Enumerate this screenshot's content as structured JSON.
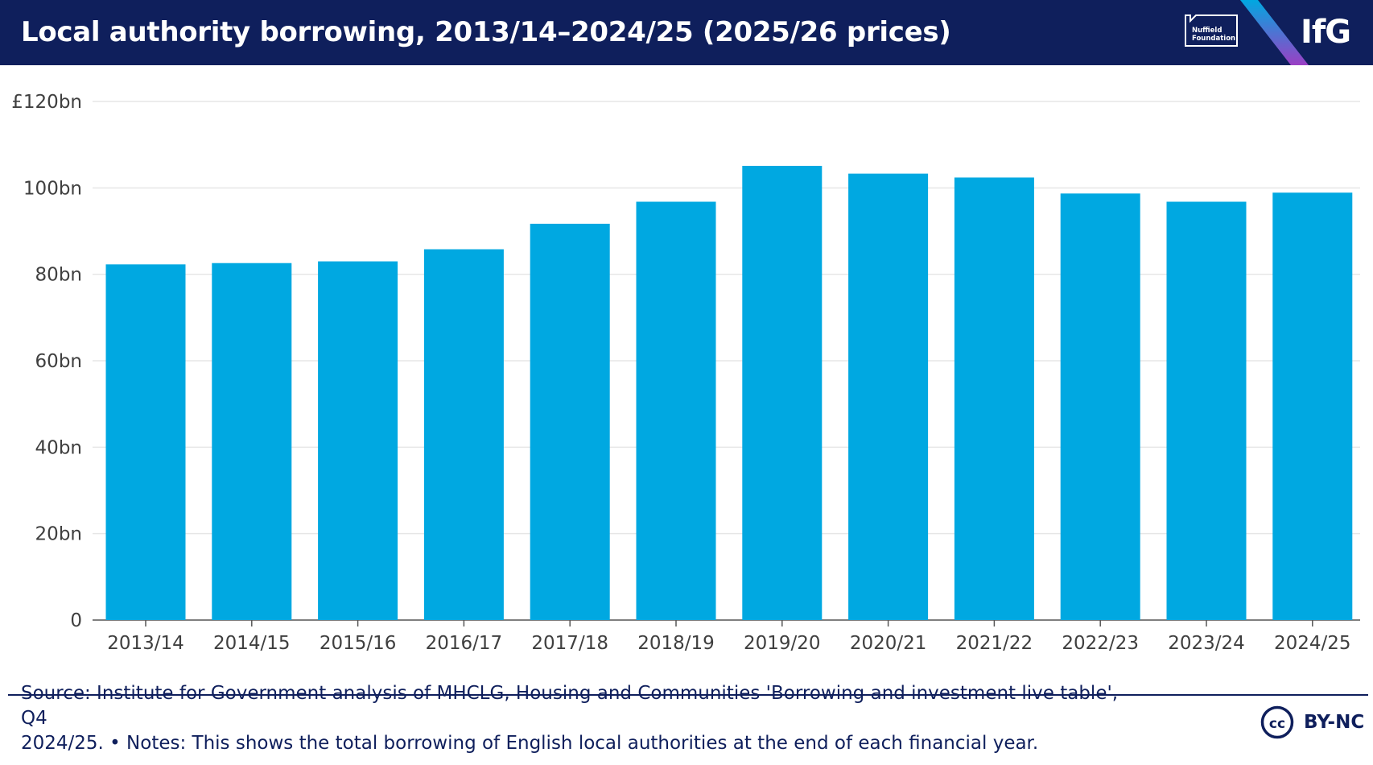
{
  "header": {
    "title": "Local authority borrowing, 2013/14–2024/25 (2025/26 prices)",
    "partner_logo_text": "Nuffield Foundation",
    "partner_logo_line1": "Nuffield",
    "partner_logo_line2": "Foundation",
    "brand": "IfG"
  },
  "colors": {
    "header_bg": "#0f1f5c",
    "bar": "#00a8e1",
    "grid": "#e6e6e6",
    "axis_text": "#3f3f3f",
    "footer_text": "#0f1f5c"
  },
  "chart_data": {
    "type": "bar",
    "title": "Local authority borrowing, 2013/14–2024/25 (2025/26 prices)",
    "xlabel": "",
    "ylabel": "",
    "ylim": [
      0,
      120
    ],
    "y_ticks": [
      0,
      20,
      40,
      60,
      80,
      100,
      120
    ],
    "y_tick_labels": [
      "0",
      "20bn",
      "40bn",
      "60bn",
      "80bn",
      "100bn",
      "£120bn"
    ],
    "grid": true,
    "legend": "none",
    "categories": [
      "2013/14",
      "2014/15",
      "2015/16",
      "2016/17",
      "2017/18",
      "2018/19",
      "2019/20",
      "2020/21",
      "2021/22",
      "2022/23",
      "2023/24",
      "2024/25"
    ],
    "series": [
      {
        "name": "Local authority borrowing (£bn, 2025/26 prices)",
        "values": [
          82.3,
          82.6,
          83.0,
          85.8,
          91.7,
          96.8,
          105.1,
          103.3,
          102.4,
          98.7,
          96.8,
          98.9
        ]
      }
    ]
  },
  "footer": {
    "source_line1": "Source: Institute for Government analysis of MHCLG, Housing and Communities 'Borrowing and investment live table', Q4",
    "source_line2": "2024/25. • Notes: This shows the total borrowing of English local authorities at the end of each financial year.",
    "license_icon": "cc-icon",
    "license_icon_text": "cc",
    "license": "BY-NC"
  }
}
